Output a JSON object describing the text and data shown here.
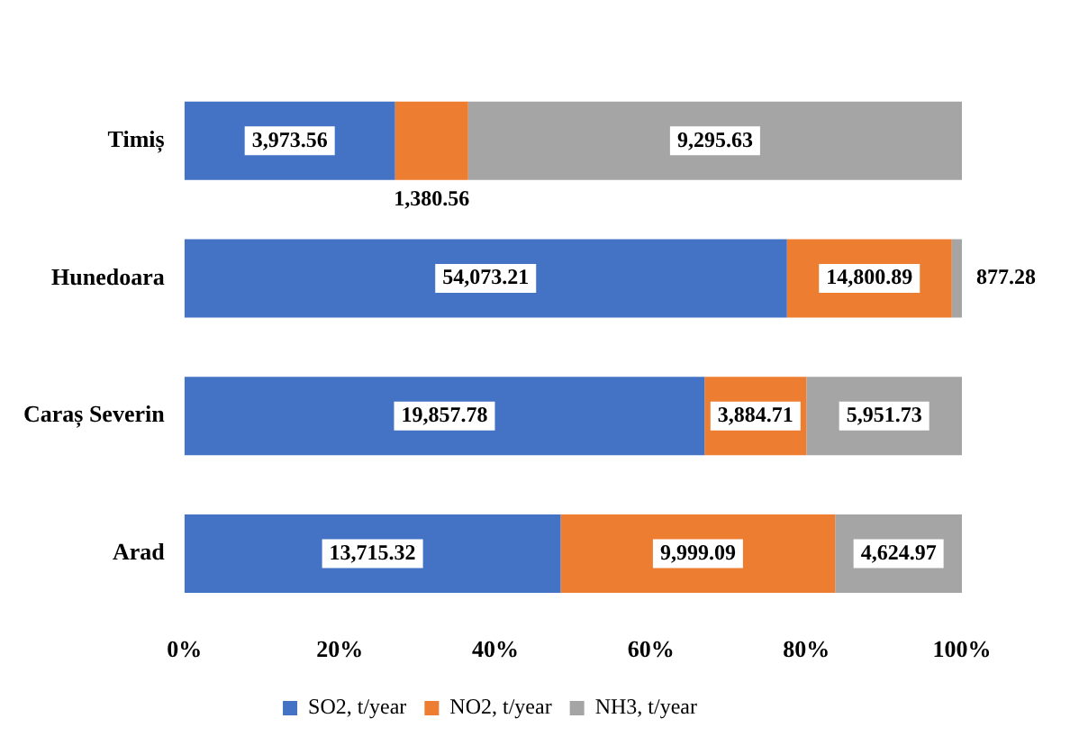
{
  "chart_data": {
    "type": "bar",
    "orientation": "horizontal",
    "stacked": true,
    "categories": [
      "Timiș",
      "Hunedoara",
      "Caraș Severin",
      "Arad"
    ],
    "series": [
      {
        "name": "SO2, t/year",
        "color": "#4472c4",
        "values": [
          27.1,
          77.5,
          66.9,
          48.4
        ]
      },
      {
        "name": "NO2, t/year",
        "color": "#ed7d31",
        "values": [
          9.4,
          21.2,
          13.1,
          35.3
        ]
      },
      {
        "name": "NH3, t/year",
        "color": "#a5a5a5",
        "values": [
          63.5,
          1.3,
          20.0,
          16.3
        ]
      }
    ],
    "annotations": [
      "3,973.56",
      "1,380.56",
      "9,295.63",
      "54,073.21",
      "14,800.89",
      "877.28",
      "19,857.78",
      "3,884.71",
      "5,951.73",
      "13,715.32",
      "9,999.09",
      "4,624.97"
    ],
    "xlim": [
      0,
      100
    ],
    "xticks": [
      {
        "value": 0,
        "label": "0%"
      },
      {
        "value": 20,
        "label": "20%"
      },
      {
        "value": 40,
        "label": "40%"
      },
      {
        "value": 60,
        "label": "60%"
      },
      {
        "value": 80,
        "label": "80%"
      },
      {
        "value": 100,
        "label": "100%"
      }
    ],
    "legend": "bottom",
    "grid": false
  }
}
